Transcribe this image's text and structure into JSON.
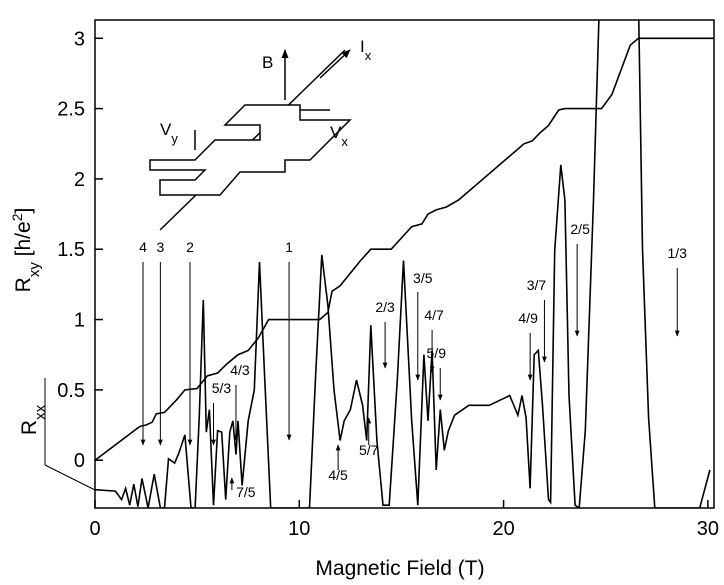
{
  "chart_data": {
    "type": "line",
    "xlabel": "Magnetic Field (T)",
    "ylabel": [
      {
        "text": "R"
      },
      {
        "text": "xy",
        "sub": true
      },
      {
        "text": " [h/e"
      },
      {
        "text": "2",
        "sup": true
      },
      {
        "text": "]"
      }
    ],
    "ylabel2": [
      {
        "text": "R"
      },
      {
        "text": "xx",
        "sub": true
      }
    ],
    "xlim": [
      0,
      30.3
    ],
    "ylim": [
      -0.34,
      3.13
    ],
    "xticks": [
      0,
      10,
      20,
      30
    ],
    "yticks": [
      0,
      0.5,
      1,
      1.5,
      2,
      2.5,
      3
    ],
    "series": [
      {
        "color": "#000000",
        "x": [
          0,
          2.2,
          2.5,
          2.8,
          3.0,
          3.4,
          4.0,
          4.4,
          5.0,
          5.5,
          6.0,
          6.5,
          7.0,
          7.5,
          8.0,
          8.5,
          11.0,
          11.4,
          11.6,
          12.0,
          12.5,
          13.0,
          13.5,
          14.5,
          15.0,
          15.5,
          16.0,
          16.3,
          16.7,
          17.2,
          17.8,
          21.0,
          21.4,
          21.8,
          22.2,
          22.7,
          23.0,
          24.8,
          25.3,
          26.2,
          26.6,
          30.3
        ],
        "values": [
          0,
          0.24,
          0.25,
          0.27,
          0.33,
          0.34,
          0.43,
          0.5,
          0.51,
          0.6,
          0.62,
          0.69,
          0.75,
          0.78,
          0.87,
          1.0,
          1.0,
          1.05,
          1.2,
          1.24,
          1.33,
          1.42,
          1.5,
          1.5,
          1.58,
          1.66,
          1.68,
          1.75,
          1.78,
          1.8,
          1.85,
          2.25,
          2.27,
          2.33,
          2.38,
          2.49,
          2.5,
          2.5,
          2.6,
          2.95,
          3.0,
          3.0
        ]
      },
      {
        "color": "#000000",
        "x": [
          0,
          1.0,
          1.3,
          1.5,
          1.7,
          1.9,
          2.1,
          2.3,
          2.6,
          2.9,
          3.2,
          3.4,
          3.6,
          3.9,
          4.1,
          4.4,
          4.7,
          4.9,
          5.1,
          5.3,
          5.45,
          5.6,
          5.8,
          6.0,
          6.2,
          6.4,
          6.6,
          6.75,
          6.9,
          7.0,
          7.2,
          7.5,
          7.8,
          8.05,
          8.3,
          8.6,
          10.5,
          10.8,
          11.1,
          11.4,
          11.7,
          12.0,
          12.2,
          12.5,
          12.8,
          13.1,
          13.3,
          13.5,
          13.8,
          14.1,
          14.4,
          14.8,
          15.1,
          15.5,
          15.8,
          16.1,
          16.3,
          16.5,
          16.7,
          16.9,
          17.1,
          17.3,
          17.6,
          18.3,
          19.3,
          20.3,
          20.7,
          20.9,
          21.1,
          21.3,
          21.5,
          21.7,
          21.9,
          22.2,
          22.3,
          22.5,
          22.8,
          23.0,
          23.2,
          23.5,
          23.7,
          24.0,
          24.4,
          24.7,
          26.6,
          26.8,
          27.1,
          27.4,
          29.6,
          30.1
        ],
        "values": [
          -0.21,
          -0.22,
          -0.28,
          -0.2,
          -0.32,
          -0.17,
          -0.33,
          -0.13,
          -0.34,
          -0.1,
          -0.34,
          -0.34,
          0.01,
          -0.02,
          0.05,
          0.18,
          -0.34,
          -0.34,
          0.3,
          1.14,
          0.2,
          0.36,
          -0.32,
          0.21,
          0.2,
          -0.28,
          0.2,
          0.28,
          0.04,
          0.28,
          -0.18,
          0.28,
          0.5,
          1.41,
          0.6,
          -0.34,
          -0.34,
          0.6,
          1.46,
          1.1,
          0.5,
          0.14,
          0.28,
          0.36,
          0.57,
          0.39,
          0.14,
          0.96,
          0.14,
          -0.32,
          -0.32,
          0.57,
          1.42,
          0.28,
          -0.32,
          0.75,
          0.28,
          0.78,
          -0.07,
          0.36,
          0.07,
          0.21,
          0.32,
          0.39,
          0.39,
          0.46,
          0.32,
          0.46,
          0.3,
          -0.2,
          0.75,
          0.78,
          0.4,
          -0.28,
          -0.3,
          1.49,
          2.1,
          1.85,
          0.46,
          -0.32,
          -0.34,
          0.21,
          1.85,
          3.3,
          3.3,
          1.5,
          0.3,
          -0.34,
          -0.34,
          -0.07
        ]
      }
    ],
    "annotations": [
      {
        "label": "4",
        "x": 2.35
      },
      {
        "label": "3",
        "x": 3.2
      },
      {
        "label": "2",
        "x": 4.65
      },
      {
        "label": "1",
        "x": 9.5
      },
      {
        "label": "2/3",
        "x": 14.2
      },
      {
        "label": "3/5",
        "x": 15.8
      },
      {
        "label": "4/7",
        "x": 16.5
      },
      {
        "label": "5/9",
        "x": 16.9
      },
      {
        "label": "4/9",
        "x": 21.3
      },
      {
        "label": "3/7",
        "x": 22.0
      },
      {
        "label": "2/5",
        "x": 23.6
      },
      {
        "label": "1/3",
        "x": 28.5
      },
      {
        "label": "5/3",
        "x": 5.8
      },
      {
        "label": "4/3",
        "x": 6.9
      },
      {
        "label": "7/5",
        "x": 6.7
      },
      {
        "label": "4/5",
        "x": 11.9
      },
      {
        "label": "5/7",
        "x": 13.4
      }
    ],
    "inset": {
      "labels": [
        {
          "text": "B"
        },
        {
          "text": "I",
          "sub": "x"
        },
        {
          "text": "V",
          "sub": "y"
        },
        {
          "text": "V",
          "sub": "x"
        }
      ]
    }
  }
}
